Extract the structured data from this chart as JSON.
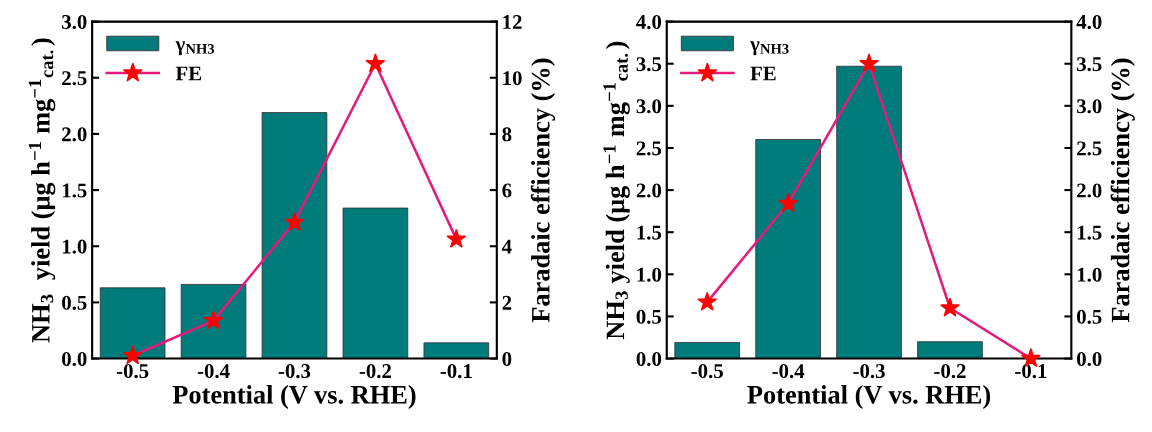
{
  "chart_data": [
    {
      "type": "bar",
      "x": [
        -0.5,
        -0.4,
        -0.3,
        -0.2,
        -0.1
      ],
      "xlim": [
        -0.55,
        -0.05
      ],
      "xticks": [
        -0.5,
        -0.4,
        -0.3,
        -0.2,
        -0.1
      ],
      "ylim": [
        0,
        3.0
      ],
      "yticks": [
        {
          "value": 0,
          "label": "0.0"
        },
        0.5,
        {
          "value": 1,
          "label": "1.0"
        },
        1.5,
        {
          "value": 2,
          "label": "2.0"
        },
        2.5,
        {
          "value": 3,
          "label": "3.0"
        }
      ],
      "y2lim": [
        0,
        12
      ],
      "y2ticks": [
        0,
        2,
        4,
        6,
        8,
        10,
        12
      ],
      "xlabel": "Potential (V vs. RHE)",
      "ylabel": "NH$_{3}$  yield (μg h$^{−1}$ mg$^{−1}$$_{cat.}$)",
      "y2label": "Faradaic efficiency (%)",
      "legend": "top left",
      "marker": "star",
      "line_style": "solid",
      "grid": false,
      "series": [
        {
          "name": "γ$_{NH3}$",
          "color": "#007b7b",
          "values": [
            0.63,
            0.66,
            2.19,
            1.34,
            0.14
          ]
        },
        {
          "name": "FE",
          "type": "line",
          "axis": "y2",
          "color": "#e6197d",
          "values": [
            0.1,
            1.35,
            4.85,
            10.5,
            4.25
          ]
        }
      ]
    },
    {
      "type": "bar",
      "x": [
        -0.5,
        -0.4,
        -0.3,
        -0.2,
        -0.1
      ],
      "xlim": [
        -0.55,
        -0.05
      ],
      "xticks": [
        -0.5,
        -0.4,
        -0.3,
        -0.2,
        -0.1
      ],
      "ylim": [
        0,
        4.0
      ],
      "yticks": [
        {
          "value": 0,
          "label": "0.0"
        },
        0.5,
        {
          "value": 1,
          "label": "1.0"
        },
        1.5,
        {
          "value": 2,
          "label": "2.0"
        },
        2.5,
        {
          "value": 3,
          "label": "3.0"
        },
        3.5,
        {
          "value": 4,
          "label": "4.0"
        }
      ],
      "y2lim": [
        0,
        4.0
      ],
      "y2ticks": [
        {
          "value": 0,
          "label": "0.0"
        },
        0.5,
        {
          "value": 1,
          "label": "1.0"
        },
        1.5,
        {
          "value": 2,
          "label": "2.0"
        },
        2.5,
        {
          "value": 3,
          "label": "3.0"
        },
        3.5,
        {
          "value": 4,
          "label": "4.0"
        }
      ],
      "xlabel": "Potential (V vs. RHE)",
      "ylabel": "NH$_{3}$ yield (μg h$^{−1}$ mg$^{−1}$$_{cat.}$)",
      "y2label": "Faradaic efficiency (%)",
      "legend": "top left",
      "marker": "star",
      "line_style": "solid",
      "grid": false,
      "series": [
        {
          "name": "γ$_{NH3}$",
          "color": "#007b7b",
          "values": [
            0.19,
            2.6,
            3.47,
            0.2,
            null
          ]
        },
        {
          "name": "FE",
          "type": "line",
          "axis": "y2",
          "color": "#e6197d",
          "values": [
            0.67,
            1.84,
            3.5,
            0.6,
            0.0
          ]
        }
      ]
    }
  ]
}
